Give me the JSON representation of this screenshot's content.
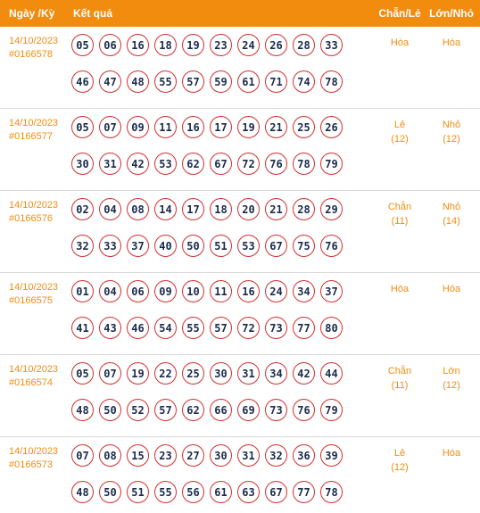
{
  "header": {
    "date_label": "Ngày /Kỳ",
    "result_label": "Kết quả",
    "odd_even_label": "Chẵn/Lẻ",
    "big_small_label": "Lớn/Nhỏ"
  },
  "rows": [
    {
      "date": "14/10/2023",
      "draw": "#0166578",
      "numbers_top": [
        "05",
        "06",
        "16",
        "18",
        "19",
        "23",
        "24",
        "26",
        "28",
        "33"
      ],
      "numbers_bottom": [
        "46",
        "47",
        "48",
        "55",
        "57",
        "59",
        "61",
        "71",
        "74",
        "78"
      ],
      "odd_even": "Hòa",
      "odd_even_count": "",
      "big_small": "Hòa",
      "big_small_count": ""
    },
    {
      "date": "14/10/2023",
      "draw": "#0166577",
      "numbers_top": [
        "05",
        "07",
        "09",
        "11",
        "16",
        "17",
        "19",
        "21",
        "25",
        "26"
      ],
      "numbers_bottom": [
        "30",
        "31",
        "42",
        "53",
        "62",
        "67",
        "72",
        "76",
        "78",
        "79"
      ],
      "odd_even": "Lẻ",
      "odd_even_count": "(12)",
      "big_small": "Nhỏ",
      "big_small_count": "(12)"
    },
    {
      "date": "14/10/2023",
      "draw": "#0166576",
      "numbers_top": [
        "02",
        "04",
        "08",
        "14",
        "17",
        "18",
        "20",
        "21",
        "28",
        "29"
      ],
      "numbers_bottom": [
        "32",
        "33",
        "37",
        "40",
        "50",
        "51",
        "53",
        "67",
        "75",
        "76"
      ],
      "odd_even": "Chẵn",
      "odd_even_count": "(11)",
      "big_small": "Nhỏ",
      "big_small_count": "(14)"
    },
    {
      "date": "14/10/2023",
      "draw": "#0166575",
      "numbers_top": [
        "01",
        "04",
        "06",
        "09",
        "10",
        "11",
        "16",
        "24",
        "34",
        "37"
      ],
      "numbers_bottom": [
        "41",
        "43",
        "46",
        "54",
        "55",
        "57",
        "72",
        "73",
        "77",
        "80"
      ],
      "odd_even": "Hòa",
      "odd_even_count": "",
      "big_small": "Hòa",
      "big_small_count": ""
    },
    {
      "date": "14/10/2023",
      "draw": "#0166574",
      "numbers_top": [
        "05",
        "07",
        "19",
        "22",
        "25",
        "30",
        "31",
        "34",
        "42",
        "44"
      ],
      "numbers_bottom": [
        "48",
        "50",
        "52",
        "57",
        "62",
        "66",
        "69",
        "73",
        "76",
        "79"
      ],
      "odd_even": "Chẵn",
      "odd_even_count": "(11)",
      "big_small": "Lớn",
      "big_small_count": "(12)"
    },
    {
      "date": "14/10/2023",
      "draw": "#0166573",
      "numbers_top": [
        "07",
        "08",
        "15",
        "23",
        "27",
        "30",
        "31",
        "32",
        "36",
        "39"
      ],
      "numbers_bottom": [
        "48",
        "50",
        "51",
        "55",
        "56",
        "61",
        "63",
        "67",
        "77",
        "78"
      ],
      "odd_even": "Lẻ",
      "odd_even_count": "(12)",
      "big_small": "Hòa",
      "big_small_count": ""
    }
  ]
}
